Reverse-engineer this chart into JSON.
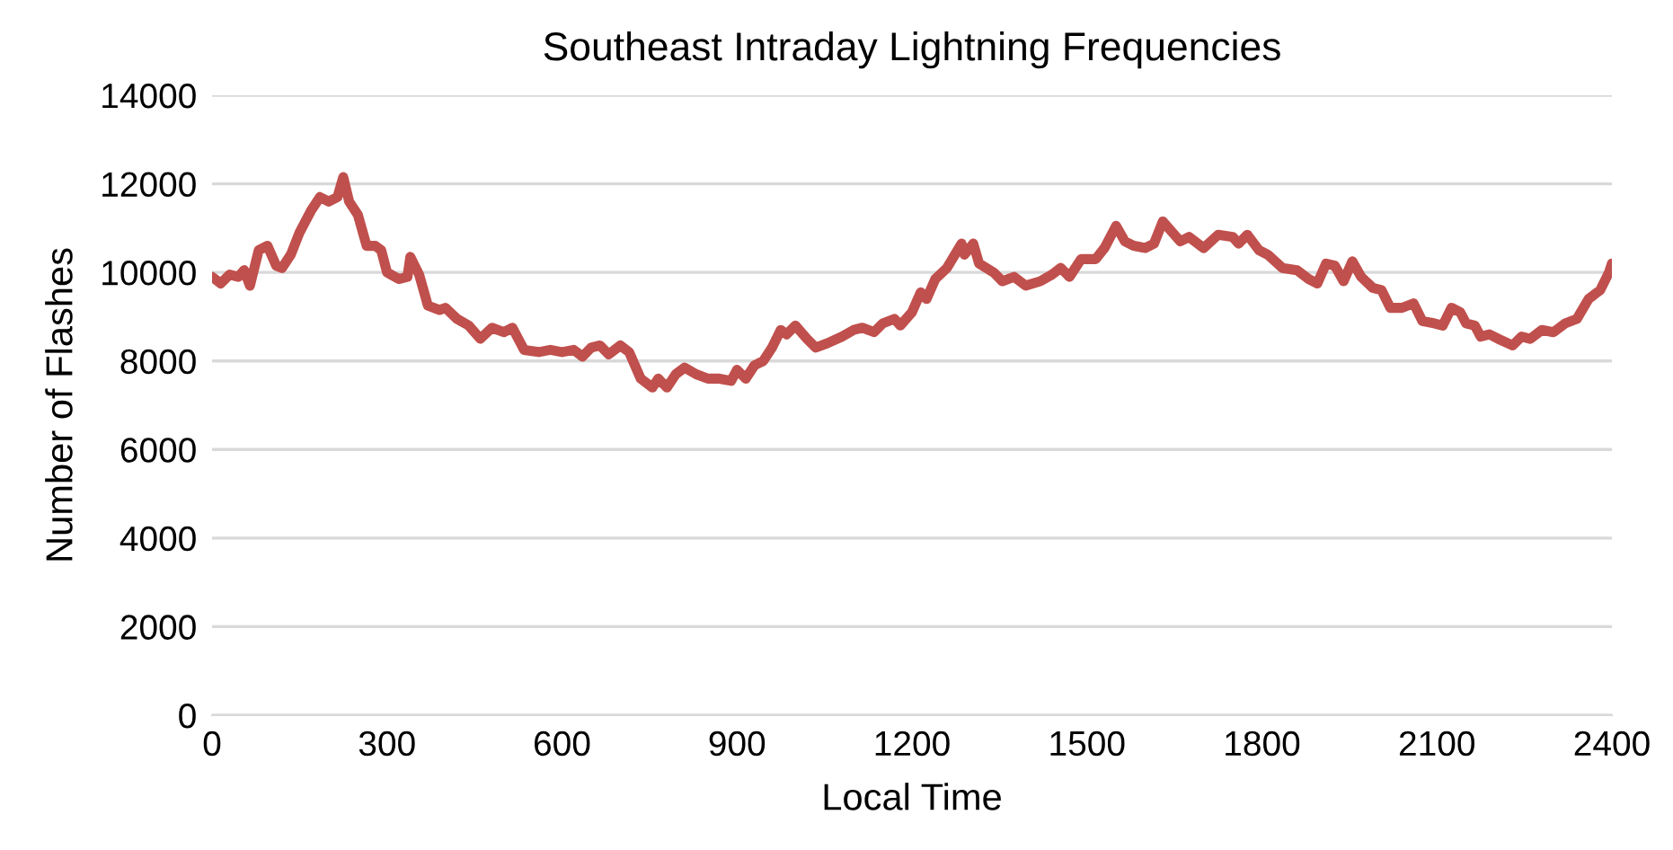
{
  "chart_data": {
    "type": "line",
    "title": "Southeast Intraday Lightning Frequencies",
    "xlabel": "Local Time",
    "ylabel": "Number of Flashes",
    "x": [
      0,
      15,
      30,
      45,
      55,
      65,
      80,
      95,
      110,
      120,
      135,
      150,
      170,
      185,
      200,
      215,
      225,
      235,
      250,
      265,
      280,
      290,
      300,
      320,
      335,
      340,
      355,
      370,
      390,
      400,
      420,
      440,
      460,
      480,
      500,
      515,
      535,
      560,
      580,
      600,
      620,
      635,
      650,
      665,
      680,
      700,
      715,
      735,
      755,
      765,
      780,
      795,
      810,
      830,
      850,
      870,
      890,
      900,
      915,
      930,
      945,
      960,
      975,
      985,
      1000,
      1020,
      1035,
      1055,
      1080,
      1100,
      1115,
      1135,
      1150,
      1170,
      1180,
      1200,
      1215,
      1225,
      1240,
      1260,
      1285,
      1290,
      1305,
      1315,
      1340,
      1355,
      1375,
      1395,
      1420,
      1440,
      1455,
      1470,
      1490,
      1515,
      1530,
      1550,
      1565,
      1580,
      1600,
      1615,
      1630,
      1660,
      1675,
      1700,
      1725,
      1750,
      1760,
      1775,
      1795,
      1810,
      1835,
      1860,
      1880,
      1895,
      1910,
      1925,
      1940,
      1955,
      1970,
      1990,
      2005,
      2020,
      2040,
      2060,
      2075,
      2095,
      2110,
      2125,
      2140,
      2150,
      2165,
      2175,
      2190,
      2205,
      2230,
      2245,
      2260,
      2280,
      2300,
      2320,
      2340,
      2360,
      2380,
      2395,
      2400
    ],
    "series": [
      {
        "color": "#c0504d",
        "values": [
          9900,
          9750,
          9950,
          9900,
          10050,
          9700,
          10500,
          10600,
          10150,
          10100,
          10400,
          10900,
          11400,
          11700,
          11600,
          11700,
          12150,
          11600,
          11300,
          10600,
          10600,
          10500,
          10000,
          9850,
          9900,
          10350,
          9950,
          9250,
          9150,
          9200,
          8950,
          8800,
          8500,
          8750,
          8650,
          8750,
          8250,
          8200,
          8250,
          8200,
          8250,
          8100,
          8300,
          8350,
          8150,
          8350,
          8200,
          7600,
          7400,
          7600,
          7400,
          7700,
          7850,
          7700,
          7600,
          7600,
          7550,
          7800,
          7600,
          7900,
          8000,
          8300,
          8700,
          8600,
          8800,
          8500,
          8300,
          8400,
          8550,
          8700,
          8750,
          8650,
          8850,
          8950,
          8800,
          9100,
          9550,
          9400,
          9850,
          10100,
          10650,
          10400,
          10650,
          10200,
          10000,
          9800,
          9900,
          9700,
          9800,
          9950,
          10100,
          9900,
          10300,
          10300,
          10550,
          11050,
          10700,
          10600,
          10550,
          10650,
          11150,
          10700,
          10800,
          10550,
          10850,
          10800,
          10650,
          10850,
          10500,
          10400,
          10100,
          10050,
          9850,
          9750,
          10200,
          10150,
          9800,
          10250,
          9900,
          9650,
          9600,
          9200,
          9200,
          9300,
          8900,
          8850,
          8800,
          9200,
          9100,
          8850,
          8800,
          8550,
          8600,
          8500,
          8350,
          8550,
          8500,
          8700,
          8650,
          8850,
          8950,
          9400,
          9600,
          10000,
          10200
        ]
      }
    ],
    "xlim": [
      0,
      2400
    ],
    "xticks": [
      0,
      300,
      600,
      900,
      1200,
      1500,
      1800,
      2100,
      2400
    ],
    "ylim": [
      0,
      14000
    ],
    "yticks": [
      0,
      2000,
      4000,
      6000,
      8000,
      10000,
      12000,
      14000
    ],
    "grid": "y",
    "line_style": "solid"
  }
}
